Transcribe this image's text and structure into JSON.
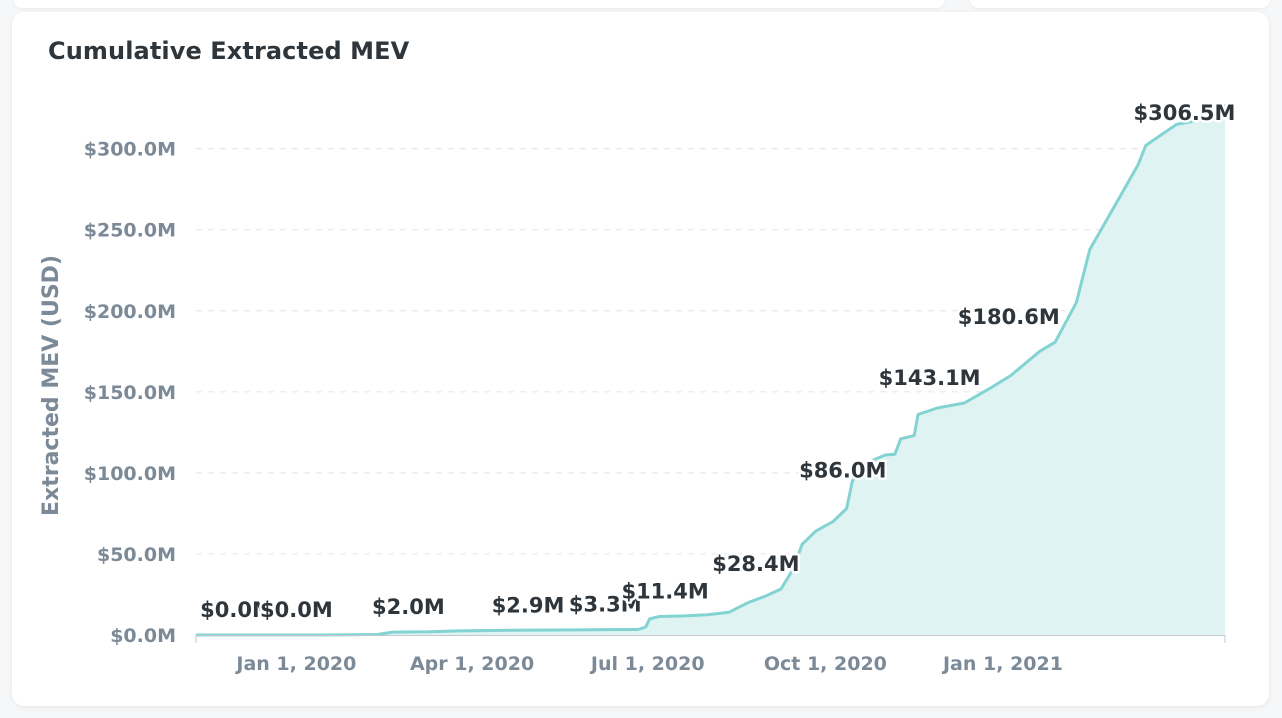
{
  "card": {
    "title": "Cumulative Extracted MEV"
  },
  "chart_data": {
    "type": "area",
    "title": "Cumulative Extracted MEV",
    "xlabel": "",
    "ylabel": "Extracted MEV (USD)",
    "ylim": [
      0,
      330
    ],
    "x_range": [
      "2019-11-10",
      "2021-04-26"
    ],
    "grid": "horizontal dashed",
    "legend": "none",
    "color": "#83d3d2",
    "fill_color": "#dff3f2",
    "y_ticks": [
      {
        "value": 0,
        "label": "$0.0M"
      },
      {
        "value": 50,
        "label": "$50.0M"
      },
      {
        "value": 100,
        "label": "$100.0M"
      },
      {
        "value": 150,
        "label": "$150.0M"
      },
      {
        "value": 200,
        "label": "$200.0M"
      },
      {
        "value": 250,
        "label": "$250.0M"
      },
      {
        "value": 300,
        "label": "$300.0M"
      }
    ],
    "x_ticks": [
      {
        "date": "2020-01-01",
        "label": "Jan 1, 2020"
      },
      {
        "date": "2020-04-01",
        "label": "Apr 1, 2020"
      },
      {
        "date": "2020-07-01",
        "label": "Jul 1, 2020"
      },
      {
        "date": "2020-10-01",
        "label": "Oct 1, 2020"
      },
      {
        "date": "2021-01-01",
        "label": "Jan 1, 2021"
      }
    ],
    "series": [
      {
        "points": [
          {
            "x": "2019-11-10",
            "y": 0.0
          },
          {
            "x": "2019-12-15",
            "y": 0.0
          },
          {
            "x": "2020-01-15",
            "y": 0.0
          },
          {
            "x": "2020-02-12",
            "y": 0.3
          },
          {
            "x": "2020-02-20",
            "y": 1.8
          },
          {
            "x": "2020-03-10",
            "y": 2.0
          },
          {
            "x": "2020-03-25",
            "y": 2.5
          },
          {
            "x": "2020-04-20",
            "y": 2.9
          },
          {
            "x": "2020-05-15",
            "y": 3.1
          },
          {
            "x": "2020-06-10",
            "y": 3.3
          },
          {
            "x": "2020-06-26",
            "y": 3.4
          },
          {
            "x": "2020-06-30",
            "y": 5.0
          },
          {
            "x": "2020-07-02",
            "y": 10.0
          },
          {
            "x": "2020-07-07",
            "y": 11.4
          },
          {
            "x": "2020-07-20",
            "y": 11.8
          },
          {
            "x": "2020-08-01",
            "y": 12.5
          },
          {
            "x": "2020-08-12",
            "y": 14.0
          },
          {
            "x": "2020-08-22",
            "y": 20.0
          },
          {
            "x": "2020-08-31",
            "y": 24.0
          },
          {
            "x": "2020-09-08",
            "y": 28.4
          },
          {
            "x": "2020-09-14",
            "y": 40.0
          },
          {
            "x": "2020-09-19",
            "y": 56.0
          },
          {
            "x": "2020-09-26",
            "y": 64.0
          },
          {
            "x": "2020-10-05",
            "y": 70.0
          },
          {
            "x": "2020-10-12",
            "y": 78.0
          },
          {
            "x": "2020-10-15",
            "y": 95.0
          },
          {
            "x": "2020-10-22",
            "y": 106.0
          },
          {
            "x": "2020-11-01",
            "y": 111.0
          },
          {
            "x": "2020-11-06",
            "y": 111.5
          },
          {
            "x": "2020-11-09",
            "y": 121.0
          },
          {
            "x": "2020-11-16",
            "y": 123.0
          },
          {
            "x": "2020-11-18",
            "y": 136.0
          },
          {
            "x": "2020-11-28",
            "y": 140.0
          },
          {
            "x": "2020-12-12",
            "y": 143.1
          },
          {
            "x": "2020-12-25",
            "y": 152.0
          },
          {
            "x": "2021-01-05",
            "y": 160.0
          },
          {
            "x": "2021-01-20",
            "y": 175.0
          },
          {
            "x": "2021-01-28",
            "y": 180.6
          },
          {
            "x": "2021-02-08",
            "y": 205.0
          },
          {
            "x": "2021-02-15",
            "y": 238.0
          },
          {
            "x": "2021-02-28",
            "y": 265.0
          },
          {
            "x": "2021-03-12",
            "y": 290.0
          },
          {
            "x": "2021-03-16",
            "y": 302.0
          },
          {
            "x": "2021-04-01",
            "y": 315.0
          },
          {
            "x": "2021-04-15",
            "y": 318.0
          },
          {
            "x": "2021-04-26",
            "y": 327.0
          }
        ]
      }
    ],
    "data_labels": [
      {
        "x": "2019-12-01",
        "y": 0.0,
        "label": "$0.0M"
      },
      {
        "x": "2020-01-01",
        "y": 0.0,
        "label": "$0.0M"
      },
      {
        "x": "2020-02-28",
        "y": 2.0,
        "label": "$2.0M"
      },
      {
        "x": "2020-04-30",
        "y": 2.9,
        "label": "$2.9M"
      },
      {
        "x": "2020-06-09",
        "y": 3.3,
        "label": "$3.3M"
      },
      {
        "x": "2020-07-10",
        "y": 11.4,
        "label": "$11.4M"
      },
      {
        "x": "2020-08-26",
        "y": 28.4,
        "label": "$28.4M"
      },
      {
        "x": "2020-10-10",
        "y": 86.0,
        "label": "$86.0M"
      },
      {
        "x": "2020-11-24",
        "y": 143.1,
        "label": "$143.1M"
      },
      {
        "x": "2021-01-04",
        "y": 180.6,
        "label": "$180.6M"
      },
      {
        "x": "2021-04-05",
        "y": 306.5,
        "label": "$306.5M"
      }
    ]
  }
}
